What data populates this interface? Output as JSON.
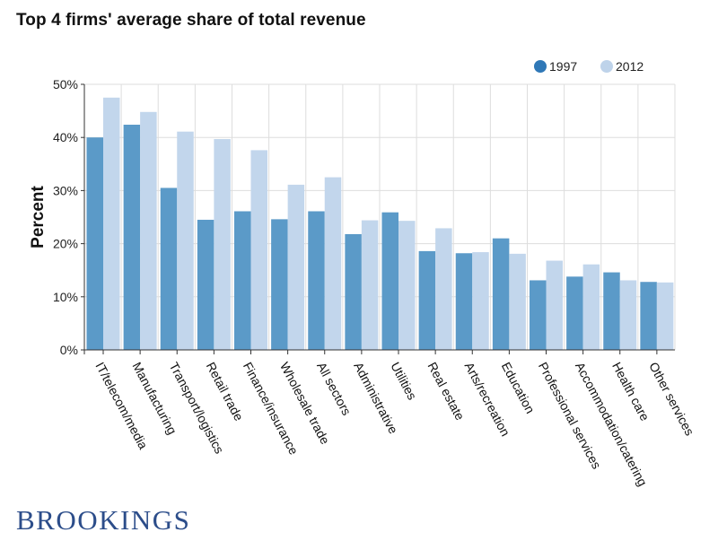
{
  "title": "Top 4 firms' average share of total revenue",
  "brand": "BROOKINGS",
  "colors": {
    "series_1997": "#5b9ac8",
    "series_2012": "#c2d6ec",
    "legend_1997": "#2f78b7",
    "legend_2012": "#bed3ea",
    "grid": "#dddddd",
    "axis": "#333333"
  },
  "chart_data": {
    "type": "bar",
    "title": "Top 4 firms' average share of total revenue",
    "ylabel": "Percent",
    "xlabel": "",
    "ylim": [
      0,
      50
    ],
    "yticks": [
      0,
      10,
      20,
      30,
      40,
      50
    ],
    "ytick_labels": [
      "0%",
      "10%",
      "20%",
      "30%",
      "40%",
      "50%"
    ],
    "legend_position": "top-right",
    "grid": true,
    "categories": [
      "IT/telecom/media",
      "Manufacturing",
      "Transport/logistics",
      "Retail trade",
      "Finance/insurance",
      "Wholesale trade",
      "All sectors",
      "Administrative",
      "Utilities",
      "Real estate",
      "Arts/recreation",
      "Education",
      "Professional services",
      "Accommodation/catering",
      "Health care",
      "Other services"
    ],
    "series": [
      {
        "name": "1997",
        "values": [
          40.0,
          42.4,
          30.5,
          24.5,
          26.1,
          24.6,
          26.1,
          21.8,
          25.9,
          18.6,
          18.2,
          21.0,
          13.1,
          13.8,
          14.6,
          12.8
        ]
      },
      {
        "name": "2012",
        "values": [
          47.5,
          44.8,
          41.1,
          39.7,
          37.6,
          31.1,
          32.5,
          24.4,
          24.3,
          22.9,
          18.4,
          18.1,
          16.8,
          16.1,
          13.1,
          12.7
        ]
      }
    ]
  }
}
